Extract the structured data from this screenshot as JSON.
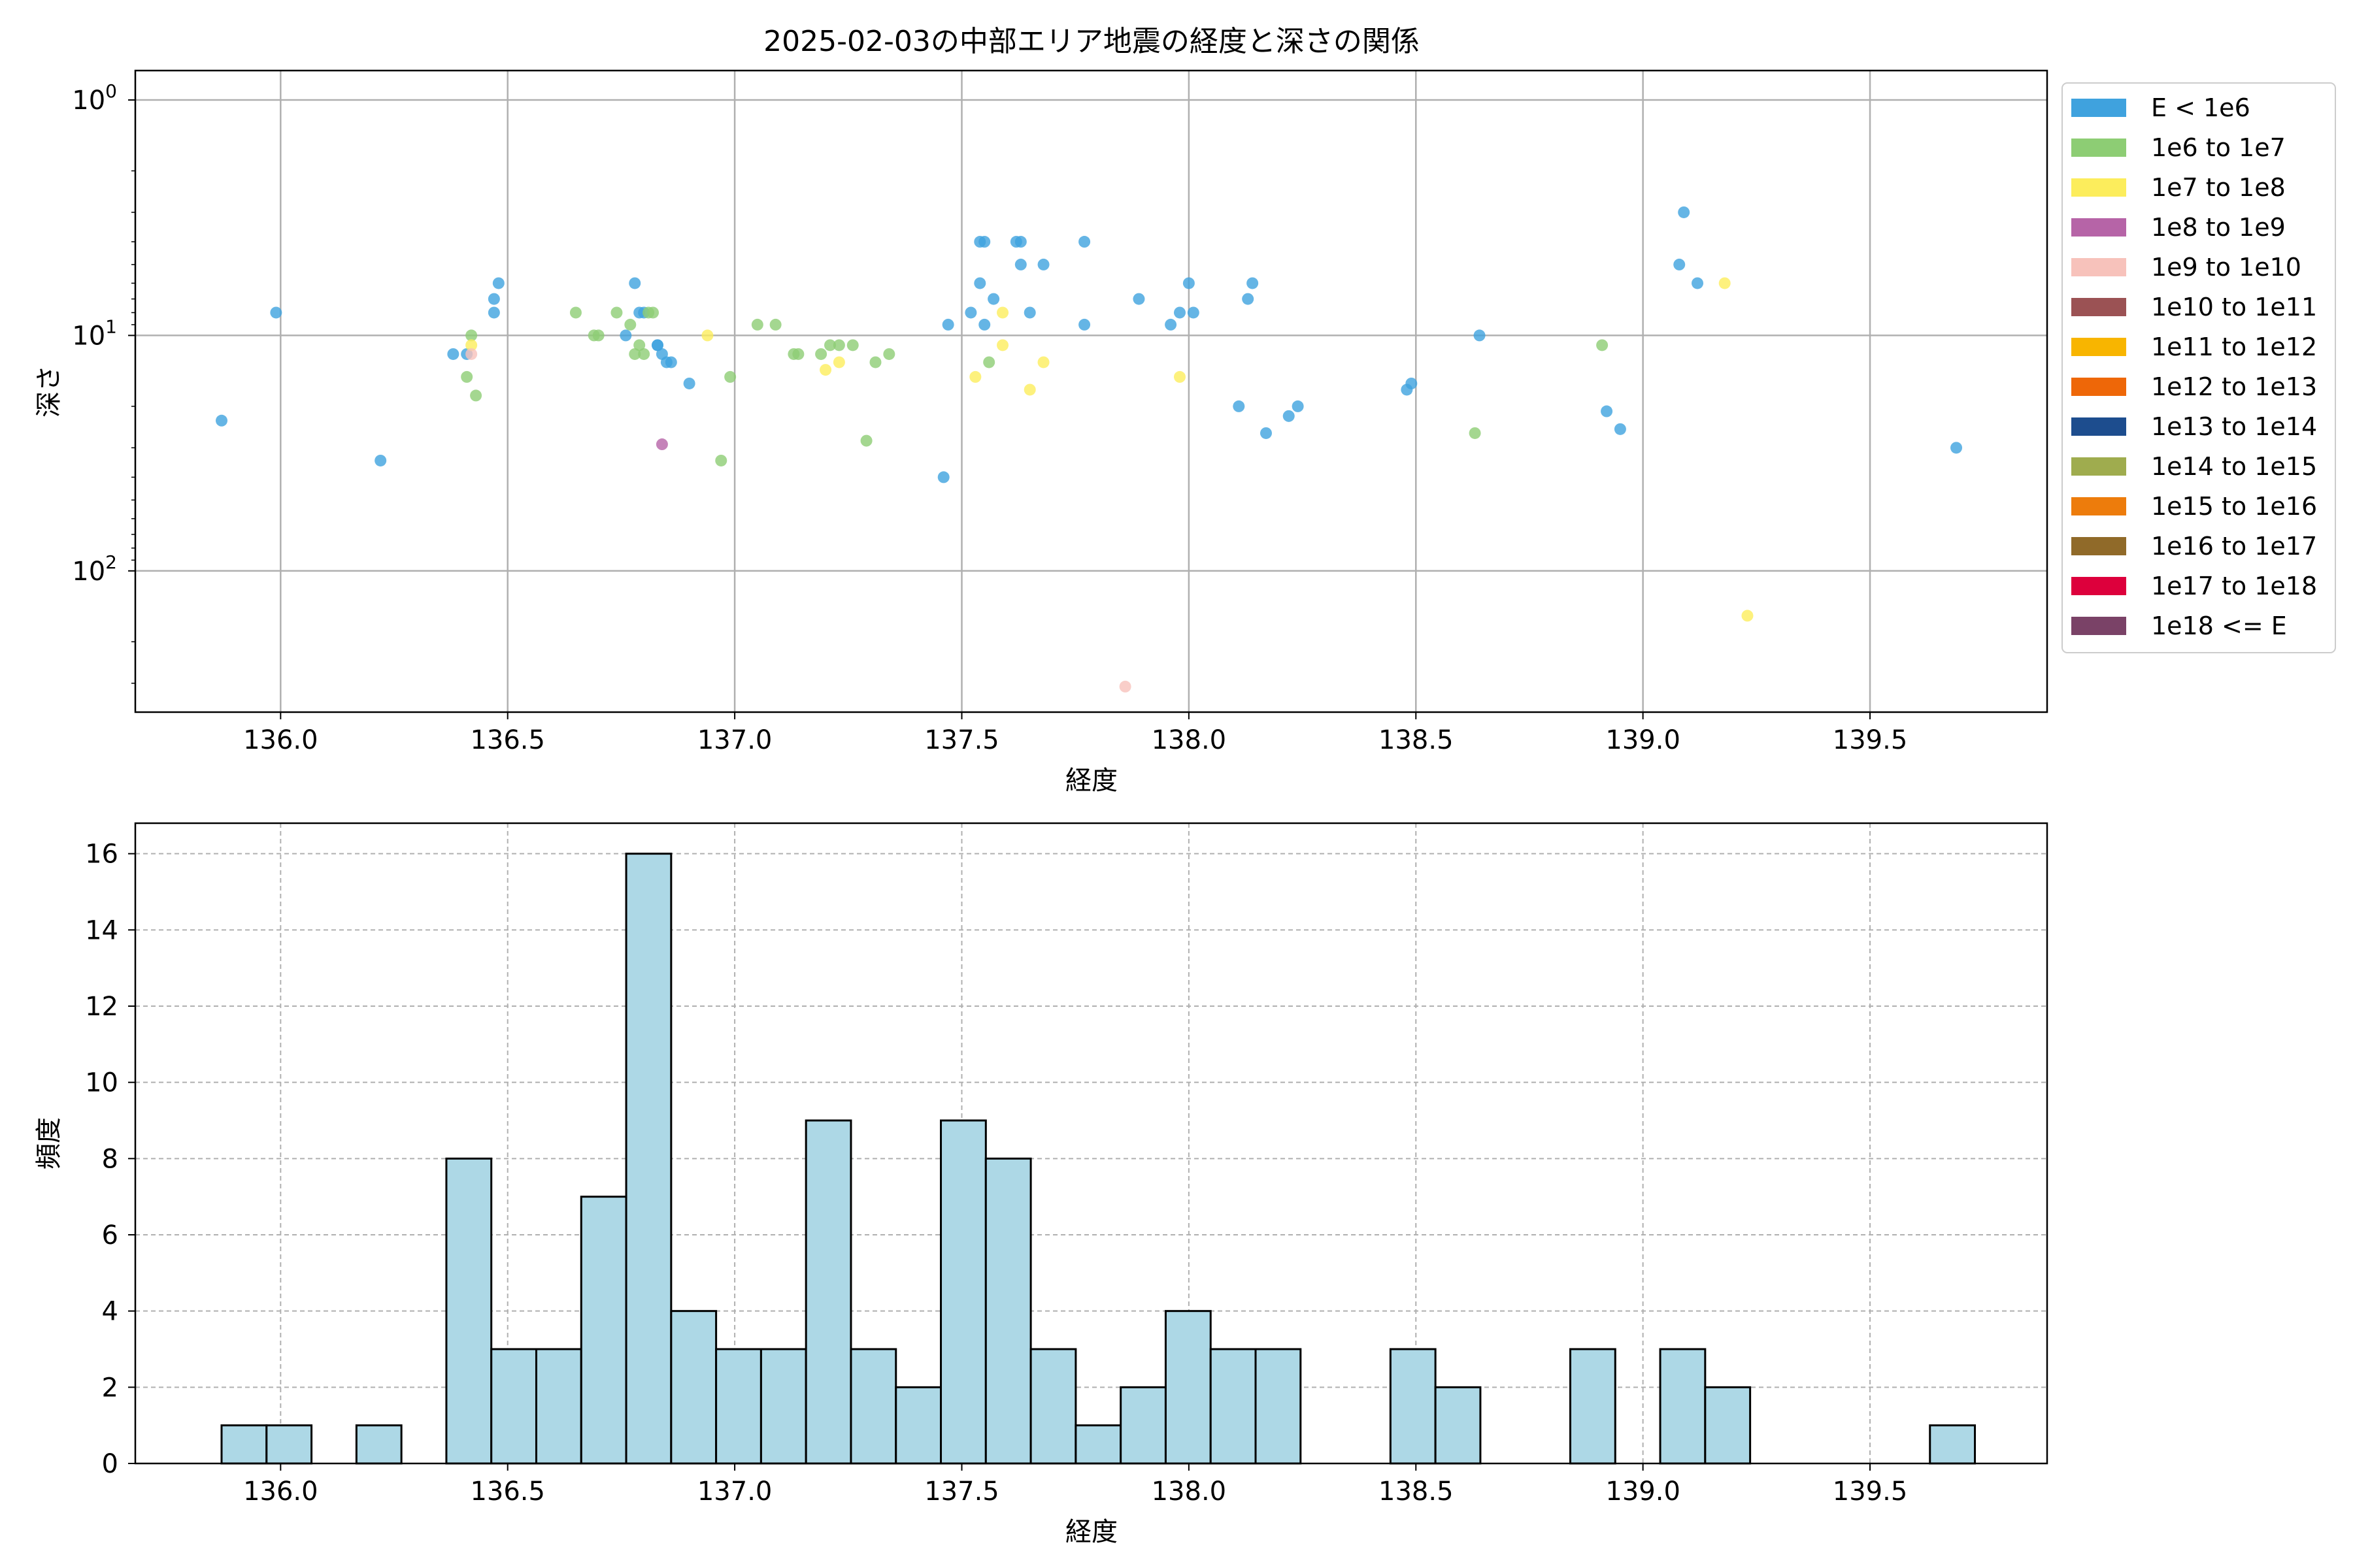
{
  "chart_data": [
    {
      "type": "scatter",
      "title": "2025-02-03の中部エリア地震の経度と深さの関係",
      "xlabel": "経度",
      "ylabel": "深さ",
      "xlim": [
        135.68,
        139.89
      ],
      "ylim": [
        398,
        0.75
      ],
      "y_scale": "log",
      "y_inverted": true,
      "grid": true,
      "legend_position": "outside-right-top",
      "x_ticks": [
        136.0,
        136.5,
        137.0,
        137.5,
        138.0,
        138.5,
        139.0,
        139.5
      ],
      "x_tick_labels": [
        "136.0",
        "136.5",
        "137.0",
        "137.5",
        "138.0",
        "138.5",
        "139.0",
        "139.5"
      ],
      "y_ticks": [
        1,
        10,
        100
      ],
      "y_tick_labels": [
        {
          "base": "10",
          "exp": "0"
        },
        {
          "base": "10",
          "exp": "1"
        },
        {
          "base": "10",
          "exp": "2"
        }
      ],
      "legend": [
        {
          "label": "E < 1e6",
          "color": "#3fa2de"
        },
        {
          "label": "1e6 to 1e7",
          "color": "#8dcd74"
        },
        {
          "label": "1e7 to 1e8",
          "color": "#fced5c"
        },
        {
          "label": "1e8 to 1e9",
          "color": "#b664a7"
        },
        {
          "label": "1e9 to 1e10",
          "color": "#f7c2bb"
        },
        {
          "label": "1e10 to 1e11",
          "color": "#9b5254"
        },
        {
          "label": "1e11 to 1e12",
          "color": "#f8b500"
        },
        {
          "label": "1e12 to 1e13",
          "color": "#ee6708"
        },
        {
          "label": "1e13 to 1e14",
          "color": "#1d4d8e"
        },
        {
          "label": "1e14 to 1e15",
          "color": "#9fac4e"
        },
        {
          "label": "1e15 to 1e16",
          "color": "#ed7c0c"
        },
        {
          "label": "1e16 to 1e17",
          "color": "#906a29"
        },
        {
          "label": "1e17 to 1e18",
          "color": "#dd003c"
        },
        {
          "label": "1e18 <= E",
          "color": "#7a4267"
        }
      ],
      "series": [
        {
          "name": "E < 1e6",
          "points": [
            [
              135.87,
              23
            ],
            [
              135.99,
              8
            ],
            [
              136.22,
              34
            ],
            [
              136.38,
              12
            ],
            [
              136.41,
              12
            ],
            [
              136.47,
              7
            ],
            [
              136.47,
              8
            ],
            [
              136.48,
              6
            ],
            [
              136.76,
              10
            ],
            [
              136.78,
              6
            ],
            [
              136.79,
              8
            ],
            [
              136.8,
              8
            ],
            [
              136.83,
              11
            ],
            [
              136.83,
              11
            ],
            [
              136.84,
              12
            ],
            [
              136.85,
              13
            ],
            [
              136.86,
              13
            ],
            [
              136.9,
              16
            ],
            [
              137.46,
              40
            ],
            [
              137.47,
              9
            ],
            [
              137.52,
              8
            ],
            [
              137.54,
              6
            ],
            [
              137.54,
              4
            ],
            [
              137.55,
              9
            ],
            [
              137.55,
              4
            ],
            [
              137.57,
              7
            ],
            [
              137.62,
              4
            ],
            [
              137.63,
              5
            ],
            [
              137.63,
              4
            ],
            [
              137.65,
              8
            ],
            [
              137.68,
              5
            ],
            [
              137.77,
              9
            ],
            [
              137.77,
              4
            ],
            [
              137.89,
              7
            ],
            [
              137.96,
              9
            ],
            [
              137.98,
              8
            ],
            [
              138.0,
              6
            ],
            [
              138.01,
              8
            ],
            [
              138.11,
              20
            ],
            [
              138.13,
              7
            ],
            [
              138.14,
              6
            ],
            [
              138.17,
              26
            ],
            [
              138.22,
              22
            ],
            [
              138.24,
              20
            ],
            [
              138.48,
              17
            ],
            [
              138.49,
              16
            ],
            [
              138.64,
              10
            ],
            [
              138.92,
              21
            ],
            [
              138.95,
              25
            ],
            [
              139.08,
              5
            ],
            [
              139.09,
              3
            ],
            [
              139.12,
              6
            ],
            [
              139.69,
              30
            ]
          ]
        },
        {
          "name": "1e6 to 1e7",
          "points": [
            [
              136.41,
              15
            ],
            [
              136.42,
              10
            ],
            [
              136.43,
              18
            ],
            [
              136.65,
              8
            ],
            [
              136.69,
              10
            ],
            [
              136.7,
              10
            ],
            [
              136.74,
              8
            ],
            [
              136.77,
              9
            ],
            [
              136.78,
              12
            ],
            [
              136.79,
              11
            ],
            [
              136.8,
              12
            ],
            [
              136.81,
              8
            ],
            [
              136.82,
              8
            ],
            [
              136.97,
              34
            ],
            [
              136.99,
              15
            ],
            [
              137.05,
              9
            ],
            [
              137.09,
              9
            ],
            [
              137.13,
              12
            ],
            [
              137.14,
              12
            ],
            [
              137.19,
              12
            ],
            [
              137.21,
              11
            ],
            [
              137.23,
              11
            ],
            [
              137.26,
              11
            ],
            [
              137.29,
              28
            ],
            [
              137.31,
              13
            ],
            [
              137.34,
              12
            ],
            [
              137.56,
              13
            ],
            [
              138.63,
              26
            ],
            [
              138.91,
              11
            ]
          ]
        },
        {
          "name": "1e7 to 1e8",
          "points": [
            [
              136.42,
              11
            ],
            [
              136.94,
              10
            ],
            [
              137.2,
              14
            ],
            [
              137.23,
              13
            ],
            [
              137.53,
              15
            ],
            [
              137.59,
              11
            ],
            [
              137.59,
              8
            ],
            [
              137.65,
              17
            ],
            [
              137.68,
              13
            ],
            [
              137.98,
              15
            ],
            [
              139.18,
              6
            ],
            [
              139.23,
              155
            ]
          ]
        },
        {
          "name": "1e8 to 1e9",
          "points": [
            [
              136.84,
              29
            ]
          ]
        },
        {
          "name": "1e9 to 1e10",
          "points": [
            [
              136.42,
              12
            ],
            [
              137.86,
              310
            ]
          ]
        }
      ]
    },
    {
      "type": "bar",
      "xlabel": "経度",
      "ylabel": "頻度",
      "xlim": [
        135.68,
        139.89
      ],
      "ylim": [
        0,
        16.8
      ],
      "grid": true,
      "bar_color": "#add8e6",
      "edge_color": "#000000",
      "x_ticks": [
        136.0,
        136.5,
        137.0,
        137.5,
        138.0,
        138.5,
        139.0,
        139.5
      ],
      "x_tick_labels": [
        "136.0",
        "136.5",
        "137.0",
        "137.5",
        "138.0",
        "138.5",
        "139.0",
        "139.5"
      ],
      "y_ticks": [
        0,
        2,
        4,
        6,
        8,
        10,
        12,
        14,
        16
      ],
      "y_tick_labels": [
        "0",
        "2",
        "4",
        "6",
        "8",
        "10",
        "12",
        "14",
        "16"
      ],
      "bin_edges": [
        135.87,
        135.969,
        136.068,
        136.167,
        136.266,
        136.365,
        136.464,
        136.563,
        136.662,
        136.761,
        136.86,
        136.959,
        137.058,
        137.157,
        137.256,
        137.355,
        137.454,
        137.553,
        137.652,
        137.751,
        137.85,
        137.949,
        138.048,
        138.147,
        138.246,
        138.345,
        138.444,
        138.543,
        138.642,
        138.741,
        138.84,
        138.939,
        139.038,
        139.137,
        139.236,
        139.335,
        139.434,
        139.533,
        139.632,
        139.731,
        139.83
      ],
      "values": [
        1,
        1,
        0,
        1,
        0,
        8,
        3,
        3,
        7,
        16,
        4,
        3,
        3,
        9,
        3,
        2,
        9,
        8,
        3,
        1,
        2,
        4,
        3,
        3,
        0,
        0,
        3,
        2,
        0,
        0,
        3,
        0,
        3,
        2,
        0,
        0,
        0,
        0,
        1,
        0
      ]
    }
  ]
}
